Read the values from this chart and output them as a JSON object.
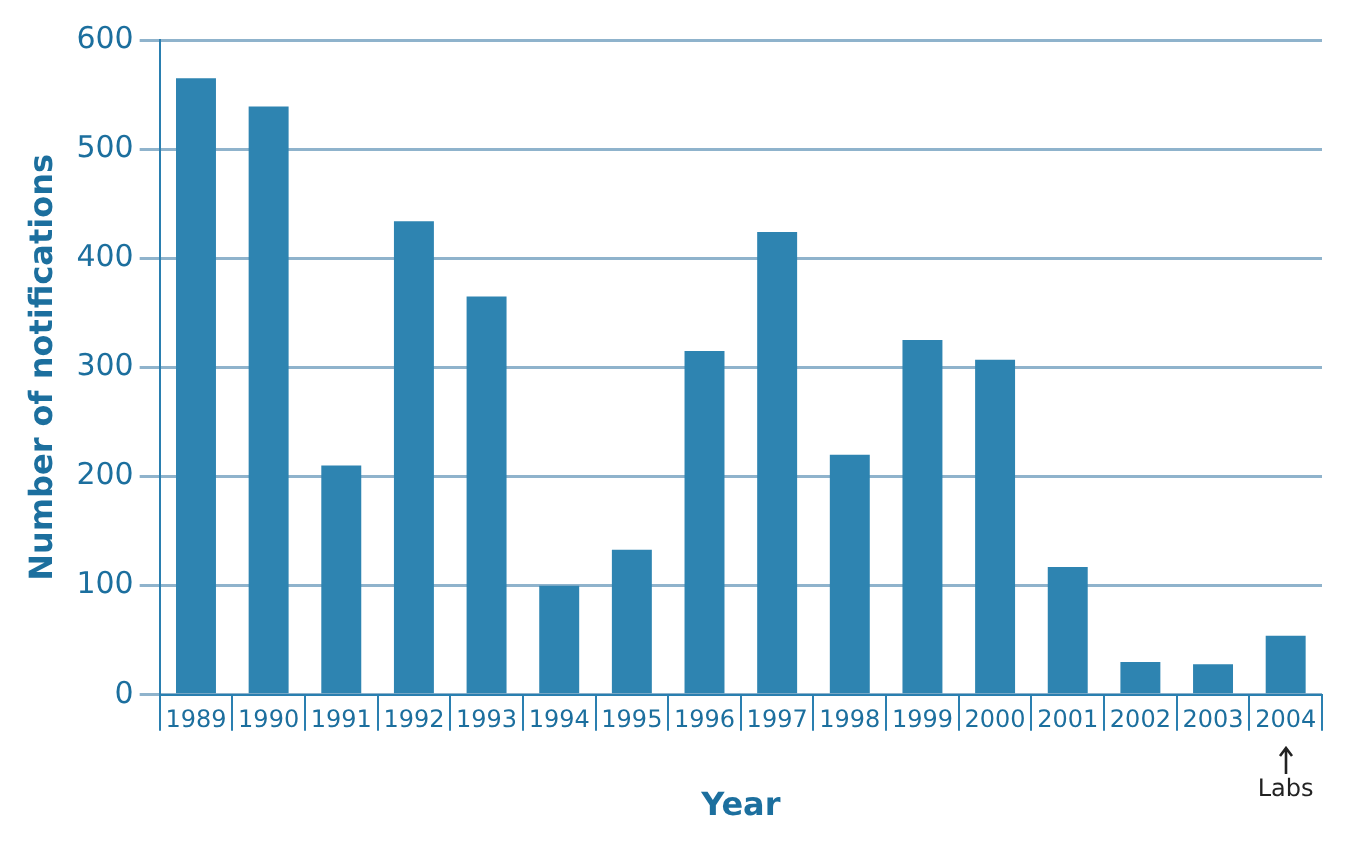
{
  "chart_data": {
    "type": "bar",
    "xlabel": "Year",
    "ylabel": "Number of notifications",
    "categories": [
      "1989",
      "1990",
      "1991",
      "1992",
      "1993",
      "1994",
      "1995",
      "1996",
      "1997",
      "1998",
      "1999",
      "2000",
      "2001",
      "2002",
      "2003",
      "2004"
    ],
    "values": [
      565,
      539,
      210,
      434,
      365,
      100,
      133,
      315,
      424,
      220,
      325,
      307,
      117,
      30,
      28,
      54
    ],
    "color": "#2e84b1",
    "ylim": [
      0,
      600
    ],
    "yticks": [
      0,
      100,
      200,
      300,
      400,
      500,
      600
    ],
    "grid": "y",
    "annotations": [
      "Labs"
    ]
  }
}
